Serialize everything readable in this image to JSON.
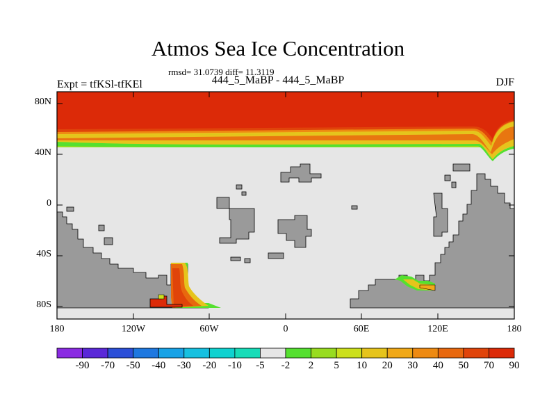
{
  "title": "Atmos Sea Ice Concentration",
  "stats": "rmsd= 31.0739 diff= 11.3119",
  "expt": "Expt = tfKSl-tfKEl",
  "subtitle": "444_5_MaBP - 444_5_MaBP",
  "season": "DJF",
  "lat_labels": [
    "80N",
    "40N",
    "0",
    "40S",
    "80S"
  ],
  "lon_labels": [
    "180",
    "120W",
    "60W",
    "0",
    "60E",
    "120E",
    "180"
  ],
  "colorbar": {
    "labels": [
      "-90",
      "-70",
      "-50",
      "-40",
      "-30",
      "-20",
      "-10",
      "-5",
      "-2",
      "2",
      "5",
      "10",
      "20",
      "30",
      "40",
      "50",
      "70",
      "90"
    ],
    "colors": [
      "#8a2be2",
      "#5a28d8",
      "#2c4fd8",
      "#1e78e0",
      "#18a2e6",
      "#16c0e0",
      "#10d2d0",
      "#18dcb8",
      "#e6e6e6",
      "#55e030",
      "#98dc20",
      "#cce01c",
      "#e6c41c",
      "#f0a818",
      "#ee8a12",
      "#e8680e",
      "#e0440a",
      "#dc2a08"
    ]
  },
  "colors": {
    "land": "#9a9a9a",
    "ocean_zero": "#e6e6e6",
    "ice_high": "#dc2a08"
  }
}
